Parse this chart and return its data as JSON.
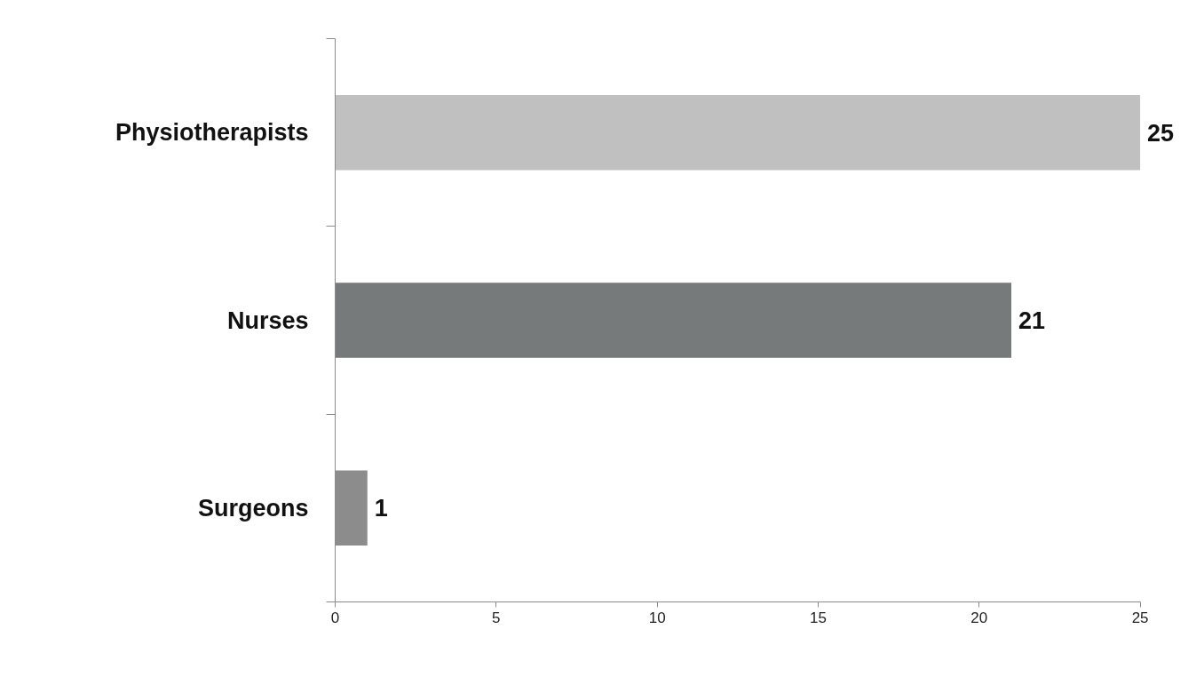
{
  "chart_data": {
    "type": "bar",
    "orientation": "horizontal",
    "categories": [
      "Physiotherapists",
      "Nurses",
      "Surgeons"
    ],
    "values": [
      25,
      21,
      1
    ],
    "colors": [
      "#c0c0c0",
      "#777a7a",
      "#8c8c8c"
    ],
    "xlim": [
      0,
      25
    ],
    "xticks": [
      0,
      5,
      10,
      15,
      20,
      25
    ],
    "data_labels": true,
    "grid": false
  }
}
